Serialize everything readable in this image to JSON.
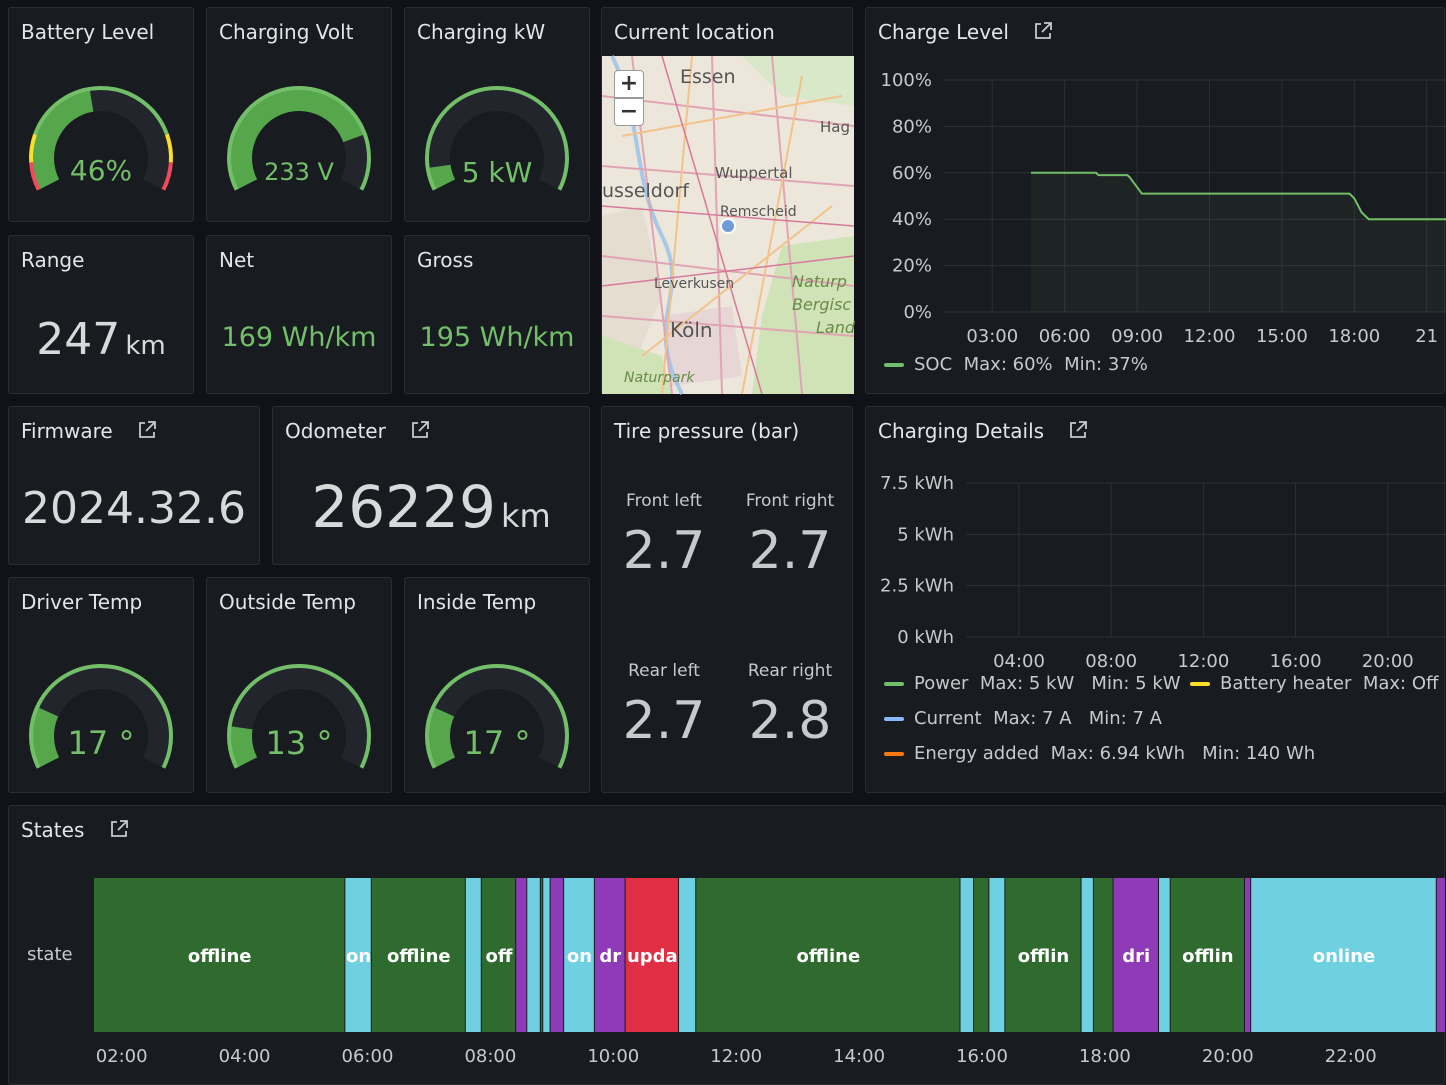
{
  "panels": {
    "battery": {
      "title": "Battery Level",
      "value": "46%",
      "percent": 46
    },
    "voltage": {
      "title": "Charging Volt",
      "value": "233 V",
      "percent": 80
    },
    "kw": {
      "title": "Charging kW",
      "value": "5 kW",
      "percent": 8
    },
    "range": {
      "title": "Range",
      "value": "247",
      "unit": "km"
    },
    "net": {
      "title": "Net",
      "value": "169 Wh/km"
    },
    "gross": {
      "title": "Gross",
      "value": "195 Wh/km"
    },
    "firmware": {
      "title": "Firmware",
      "value": "2024.32.6"
    },
    "odometer": {
      "title": "Odometer",
      "value": "26229",
      "unit": "km"
    },
    "driver_temp": {
      "title": "Driver Temp",
      "value": "17 °",
      "percent": 22
    },
    "outside_temp": {
      "title": "Outside Temp",
      "value": "13 °",
      "percent": 15
    },
    "inside_temp": {
      "title": "Inside Temp",
      "value": "17 °",
      "percent": 22
    },
    "location": {
      "title": "Current location",
      "zoom_in": "+",
      "zoom_out": "−",
      "map_labels": [
        "Essen",
        "Hag",
        "Wuppertal",
        "usseldorf",
        "Remscheid",
        "Leverkusen",
        "Naturp",
        "Bergisc",
        "Land",
        "Köln",
        "Naturpark"
      ]
    },
    "tires": {
      "title": "Tire pressure (bar)",
      "front_left_label": "Front left",
      "front_left": "2.7",
      "front_right_label": "Front right",
      "front_right": "2.7",
      "rear_left_label": "Rear left",
      "rear_left": "2.7",
      "rear_right_label": "Rear right",
      "rear_right": "2.8"
    },
    "charge_level": {
      "title": "Charge Level",
      "legend": {
        "name": "SOC",
        "max": "Max: 60%",
        "min": "Min: 37%",
        "color": "#73bf69"
      }
    },
    "charging_details": {
      "title": "Charging Details",
      "legend": [
        {
          "name": "Power",
          "stats": "Max: 5 kW   Min: 5 kW",
          "color": "#73bf69"
        },
        {
          "name": "Battery heater",
          "stats": "Max: Off",
          "color": "#fade2a"
        },
        {
          "name": "Current",
          "stats": "Max: 7 A   Min: 7 A",
          "color": "#8ab8ff"
        },
        {
          "name": "Energy added",
          "stats": "Max: 6.94 kWh   Min: 140 Wh",
          "color": "#ff780a"
        }
      ]
    },
    "states": {
      "title": "States",
      "row_label": "state"
    }
  },
  "chart_data": [
    {
      "type": "line",
      "title": "Charge Level",
      "ylim": [
        0,
        100
      ],
      "y_ticks": [
        "100%",
        "80%",
        "60%",
        "40%",
        "20%",
        "0%"
      ],
      "x_ticks": [
        "03:00",
        "06:00",
        "09:00",
        "12:00",
        "15:00",
        "18:00",
        "21"
      ],
      "x_range_hours": [
        1.0,
        21.8
      ],
      "series": [
        {
          "name": "SOC",
          "x": [
            4.6,
            7.3,
            7.4,
            8.6,
            8.7,
            9.2,
            12.0,
            15.0,
            17.8,
            18.0,
            18.3,
            18.6,
            20.5,
            21.8
          ],
          "y": [
            60,
            60,
            59,
            59,
            58,
            51,
            51,
            51,
            51,
            49,
            43,
            40,
            40,
            40
          ]
        }
      ]
    },
    {
      "type": "line",
      "title": "Charging Details",
      "ylim": [
        0,
        7.5
      ],
      "y_ticks": [
        "7.5 kWh",
        "5 kWh",
        "2.5 kWh",
        "0 kWh"
      ],
      "x_ticks": [
        "04:00",
        "08:00",
        "12:00",
        "16:00",
        "20:00"
      ]
    },
    {
      "type": "state-timeline",
      "title": "States",
      "x_ticks": [
        "02:00",
        "04:00",
        "06:00",
        "08:00",
        "10:00",
        "12:00",
        "14:00",
        "16:00",
        "18:00",
        "20:00",
        "22:00"
      ],
      "x_range_hours": [
        1.55,
        23.55
      ],
      "colors": {
        "offline": "#2f6b2f",
        "online": "#6ed0e0",
        "driving": "#8f3bb8",
        "updating": "#e02f44"
      },
      "segments": [
        {
          "state": "offline",
          "start": 1.55,
          "end": 5.64,
          "label": "offline"
        },
        {
          "state": "online",
          "start": 5.64,
          "end": 6.07,
          "label": "on"
        },
        {
          "state": "offline",
          "start": 6.07,
          "end": 7.6,
          "label": "offline"
        },
        {
          "state": "online",
          "start": 7.6,
          "end": 7.86,
          "label": ""
        },
        {
          "state": "offline",
          "start": 7.86,
          "end": 8.42,
          "label": "off"
        },
        {
          "state": "driving",
          "start": 8.42,
          "end": 8.6,
          "label": ""
        },
        {
          "state": "online",
          "start": 8.6,
          "end": 8.82,
          "label": ""
        },
        {
          "state": "offline",
          "start": 8.82,
          "end": 8.86,
          "label": ""
        },
        {
          "state": "online",
          "start": 8.86,
          "end": 8.98,
          "label": ""
        },
        {
          "state": "driving",
          "start": 8.98,
          "end": 9.2,
          "label": ""
        },
        {
          "state": "online",
          "start": 9.2,
          "end": 9.7,
          "label": "on"
        },
        {
          "state": "driving",
          "start": 9.7,
          "end": 10.2,
          "label": "dr"
        },
        {
          "state": "updating",
          "start": 10.2,
          "end": 11.07,
          "label": "upda"
        },
        {
          "state": "online",
          "start": 11.07,
          "end": 11.35,
          "label": ""
        },
        {
          "state": "offline",
          "start": 11.35,
          "end": 15.65,
          "label": "offline"
        },
        {
          "state": "online",
          "start": 15.65,
          "end": 15.87,
          "label": ""
        },
        {
          "state": "offline",
          "start": 15.87,
          "end": 16.12,
          "label": ""
        },
        {
          "state": "online",
          "start": 16.12,
          "end": 16.38,
          "label": ""
        },
        {
          "state": "offline",
          "start": 16.38,
          "end": 17.62,
          "label": "offlin"
        },
        {
          "state": "online",
          "start": 17.62,
          "end": 17.82,
          "label": ""
        },
        {
          "state": "offline",
          "start": 17.82,
          "end": 18.14,
          "label": ""
        },
        {
          "state": "driving",
          "start": 18.14,
          "end": 18.88,
          "label": "dri"
        },
        {
          "state": "online",
          "start": 18.88,
          "end": 19.07,
          "label": ""
        },
        {
          "state": "offline",
          "start": 19.07,
          "end": 20.28,
          "label": "offlin"
        },
        {
          "state": "driving",
          "start": 20.28,
          "end": 20.38,
          "label": ""
        },
        {
          "state": "online",
          "start": 20.38,
          "end": 23.4,
          "label": "online"
        },
        {
          "state": "driving",
          "start": 23.4,
          "end": 23.55,
          "label": ""
        }
      ]
    }
  ]
}
